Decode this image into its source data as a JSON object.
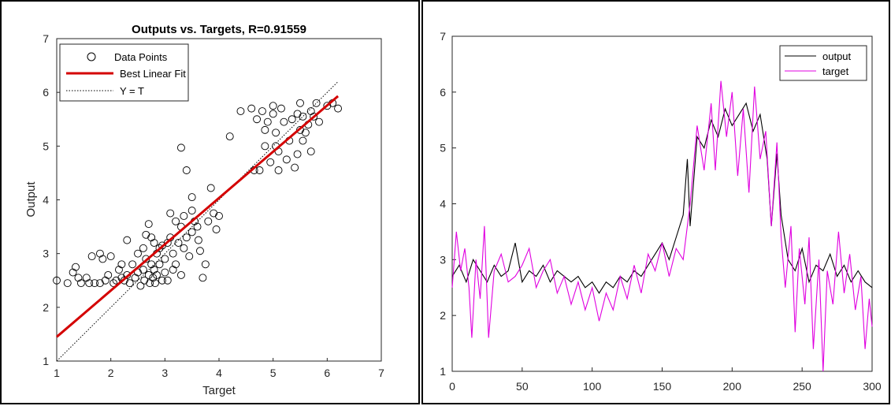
{
  "colors": {
    "scatter_marker": "#000000",
    "fit_line": "#d40000",
    "identity_line": "#000000",
    "output_line": "#000000",
    "target_line": "#e000e0",
    "frame": "#000000"
  },
  "chart_data": [
    {
      "type": "scatter",
      "title": "Outputs vs. Targets, R=0.91559",
      "xlabel": "Target",
      "ylabel": "Output",
      "xlim": [
        1,
        7
      ],
      "ylim": [
        1,
        7
      ],
      "xticks": [
        "1",
        "2",
        "3",
        "4",
        "5",
        "6",
        "7"
      ],
      "yticks": [
        "1",
        "2",
        "3",
        "4",
        "5",
        "6",
        "7"
      ],
      "grid": false,
      "legend_position": "top-left",
      "legend": [
        "Data Points",
        "Best Linear Fit",
        "Y = T"
      ],
      "series": [
        {
          "name": "Data Points",
          "marker": "circle",
          "points": [
            [
              1.0,
              2.5
            ],
            [
              1.2,
              2.45
            ],
            [
              1.3,
              2.65
            ],
            [
              1.35,
              2.75
            ],
            [
              1.4,
              2.55
            ],
            [
              1.45,
              2.45
            ],
            [
              1.55,
              2.55
            ],
            [
              1.6,
              2.45
            ],
            [
              1.65,
              2.95
            ],
            [
              1.7,
              2.45
            ],
            [
              1.8,
              3.0
            ],
            [
              1.8,
              2.45
            ],
            [
              1.85,
              2.9
            ],
            [
              1.9,
              2.5
            ],
            [
              1.95,
              2.6
            ],
            [
              2.0,
              2.95
            ],
            [
              2.05,
              2.45
            ],
            [
              2.1,
              2.5
            ],
            [
              2.15,
              2.7
            ],
            [
              2.2,
              2.8
            ],
            [
              2.2,
              2.55
            ],
            [
              2.25,
              2.5
            ],
            [
              2.3,
              3.25
            ],
            [
              2.3,
              2.6
            ],
            [
              2.35,
              2.45
            ],
            [
              2.4,
              2.8
            ],
            [
              2.45,
              2.55
            ],
            [
              2.5,
              3.0
            ],
            [
              2.5,
              2.65
            ],
            [
              2.55,
              2.4
            ],
            [
              2.6,
              3.1
            ],
            [
              2.6,
              2.7
            ],
            [
              2.62,
              2.5
            ],
            [
              2.65,
              3.35
            ],
            [
              2.65,
              2.9
            ],
            [
              2.7,
              3.55
            ],
            [
              2.7,
              2.6
            ],
            [
              2.72,
              2.45
            ],
            [
              2.75,
              3.3
            ],
            [
              2.75,
              2.8
            ],
            [
              2.78,
              2.55
            ],
            [
              2.8,
              3.2
            ],
            [
              2.8,
              2.7
            ],
            [
              2.82,
              2.45
            ],
            [
              2.85,
              3.0
            ],
            [
              2.85,
              2.6
            ],
            [
              2.9,
              3.1
            ],
            [
              2.9,
              2.8
            ],
            [
              2.95,
              2.5
            ],
            [
              2.95,
              3.15
            ],
            [
              3.0,
              2.9
            ],
            [
              3.0,
              2.65
            ],
            [
              3.05,
              3.2
            ],
            [
              3.05,
              2.5
            ],
            [
              3.1,
              3.75
            ],
            [
              3.1,
              3.3
            ],
            [
              3.15,
              3.0
            ],
            [
              3.15,
              2.7
            ],
            [
              3.2,
              3.6
            ],
            [
              3.2,
              2.8
            ],
            [
              3.25,
              3.2
            ],
            [
              3.3,
              4.97
            ],
            [
              3.3,
              3.5
            ],
            [
              3.3,
              2.6
            ],
            [
              3.35,
              3.1
            ],
            [
              3.35,
              3.7
            ],
            [
              3.4,
              4.55
            ],
            [
              3.4,
              3.3
            ],
            [
              3.45,
              2.95
            ],
            [
              3.5,
              4.05
            ],
            [
              3.5,
              3.8
            ],
            [
              3.5,
              3.4
            ],
            [
              3.55,
              3.6
            ],
            [
              3.6,
              3.5
            ],
            [
              3.62,
              3.25
            ],
            [
              3.65,
              3.05
            ],
            [
              3.7,
              2.55
            ],
            [
              3.75,
              2.8
            ],
            [
              3.8,
              3.6
            ],
            [
              3.85,
              4.22
            ],
            [
              3.9,
              3.75
            ],
            [
              3.95,
              3.45
            ],
            [
              4.0,
              3.7
            ],
            [
              4.2,
              5.18
            ],
            [
              4.4,
              5.65
            ],
            [
              4.6,
              5.7
            ],
            [
              4.65,
              4.55
            ],
            [
              4.7,
              5.5
            ],
            [
              4.75,
              4.55
            ],
            [
              4.8,
              5.65
            ],
            [
              4.85,
              5.3
            ],
            [
              4.85,
              5.0
            ],
            [
              4.9,
              5.45
            ],
            [
              4.95,
              4.7
            ],
            [
              5.0,
              5.6
            ],
            [
              5.0,
              5.75
            ],
            [
              5.05,
              5.25
            ],
            [
              5.05,
              5.0
            ],
            [
              5.1,
              4.9
            ],
            [
              5.1,
              4.55
            ],
            [
              5.15,
              5.7
            ],
            [
              5.2,
              5.45
            ],
            [
              5.25,
              4.75
            ],
            [
              5.3,
              5.1
            ],
            [
              5.35,
              5.5
            ],
            [
              5.4,
              4.6
            ],
            [
              5.45,
              5.6
            ],
            [
              5.45,
              4.85
            ],
            [
              5.5,
              5.8
            ],
            [
              5.5,
              5.3
            ],
            [
              5.55,
              5.55
            ],
            [
              5.55,
              5.1
            ],
            [
              5.6,
              5.25
            ],
            [
              5.65,
              5.4
            ],
            [
              5.7,
              4.9
            ],
            [
              5.7,
              5.65
            ],
            [
              5.75,
              5.55
            ],
            [
              5.8,
              5.8
            ],
            [
              5.85,
              5.45
            ],
            [
              6.0,
              5.75
            ],
            [
              6.1,
              5.8
            ],
            [
              6.2,
              5.7
            ]
          ]
        },
        {
          "name": "Best Linear Fit",
          "line": [
            [
              1,
              1.45
            ],
            [
              6.2,
              5.93
            ]
          ]
        },
        {
          "name": "Y = T",
          "line": [
            [
              1,
              1
            ],
            [
              6.2,
              6.2
            ]
          ]
        }
      ]
    },
    {
      "type": "line",
      "title": "",
      "xlabel": "",
      "ylabel": "",
      "xlim": [
        0,
        300
      ],
      "ylim": [
        1,
        7
      ],
      "xticks": [
        "0",
        "50",
        "100",
        "150",
        "200",
        "250",
        "300"
      ],
      "yticks": [
        "1",
        "2",
        "3",
        "4",
        "5",
        "6",
        "7"
      ],
      "grid": false,
      "legend_position": "top-right",
      "legend": [
        "output",
        "target"
      ],
      "series": [
        {
          "name": "output",
          "points": [
            [
              0,
              2.7
            ],
            [
              5,
              2.9
            ],
            [
              10,
              2.6
            ],
            [
              15,
              3.0
            ],
            [
              20,
              2.8
            ],
            [
              25,
              2.6
            ],
            [
              30,
              2.9
            ],
            [
              35,
              2.7
            ],
            [
              40,
              2.8
            ],
            [
              45,
              3.3
            ],
            [
              50,
              2.6
            ],
            [
              55,
              2.8
            ],
            [
              60,
              2.7
            ],
            [
              65,
              2.9
            ],
            [
              70,
              2.6
            ],
            [
              75,
              2.8
            ],
            [
              80,
              2.7
            ],
            [
              85,
              2.6
            ],
            [
              90,
              2.7
            ],
            [
              95,
              2.5
            ],
            [
              100,
              2.6
            ],
            [
              105,
              2.4
            ],
            [
              110,
              2.6
            ],
            [
              115,
              2.5
            ],
            [
              120,
              2.7
            ],
            [
              125,
              2.6
            ],
            [
              130,
              2.8
            ],
            [
              135,
              2.7
            ],
            [
              140,
              2.9
            ],
            [
              145,
              3.1
            ],
            [
              150,
              3.3
            ],
            [
              155,
              3.0
            ],
            [
              160,
              3.4
            ],
            [
              165,
              3.8
            ],
            [
              168,
              4.8
            ],
            [
              170,
              3.6
            ],
            [
              175,
              5.2
            ],
            [
              180,
              5.0
            ],
            [
              185,
              5.5
            ],
            [
              190,
              5.2
            ],
            [
              195,
              5.7
            ],
            [
              200,
              5.4
            ],
            [
              205,
              5.6
            ],
            [
              210,
              5.8
            ],
            [
              215,
              5.3
            ],
            [
              220,
              5.6
            ],
            [
              225,
              4.8
            ],
            [
              228,
              3.6
            ],
            [
              232,
              4.9
            ],
            [
              235,
              3.8
            ],
            [
              240,
              3.0
            ],
            [
              245,
              2.8
            ],
            [
              250,
              3.2
            ],
            [
              255,
              2.6
            ],
            [
              260,
              2.9
            ],
            [
              265,
              2.8
            ],
            [
              270,
              3.1
            ],
            [
              275,
              2.7
            ],
            [
              280,
              2.9
            ],
            [
              285,
              2.6
            ],
            [
              290,
              2.8
            ],
            [
              295,
              2.6
            ],
            [
              300,
              2.5
            ]
          ]
        },
        {
          "name": "target",
          "points": [
            [
              0,
              2.5
            ],
            [
              3,
              3.5
            ],
            [
              6,
              2.8
            ],
            [
              9,
              3.2
            ],
            [
              12,
              2.5
            ],
            [
              14,
              1.6
            ],
            [
              17,
              3.0
            ],
            [
              20,
              2.3
            ],
            [
              23,
              3.6
            ],
            [
              26,
              1.6
            ],
            [
              30,
              2.8
            ],
            [
              35,
              3.1
            ],
            [
              40,
              2.6
            ],
            [
              45,
              2.7
            ],
            [
              50,
              2.9
            ],
            [
              55,
              3.2
            ],
            [
              60,
              2.5
            ],
            [
              65,
              2.8
            ],
            [
              70,
              3.0
            ],
            [
              75,
              2.4
            ],
            [
              80,
              2.7
            ],
            [
              85,
              2.2
            ],
            [
              90,
              2.6
            ],
            [
              95,
              2.1
            ],
            [
              100,
              2.5
            ],
            [
              105,
              1.9
            ],
            [
              110,
              2.4
            ],
            [
              115,
              2.1
            ],
            [
              120,
              2.7
            ],
            [
              125,
              2.3
            ],
            [
              130,
              2.9
            ],
            [
              135,
              2.4
            ],
            [
              140,
              3.1
            ],
            [
              145,
              2.8
            ],
            [
              150,
              3.3
            ],
            [
              155,
              2.7
            ],
            [
              160,
              3.2
            ],
            [
              165,
              3.0
            ],
            [
              170,
              4.0
            ],
            [
              175,
              5.4
            ],
            [
              180,
              4.6
            ],
            [
              185,
              5.8
            ],
            [
              188,
              4.6
            ],
            [
              192,
              6.2
            ],
            [
              196,
              5.2
            ],
            [
              200,
              6.0
            ],
            [
              204,
              4.5
            ],
            [
              208,
              5.7
            ],
            [
              212,
              4.2
            ],
            [
              216,
              6.1
            ],
            [
              220,
              4.8
            ],
            [
              224,
              5.3
            ],
            [
              228,
              3.6
            ],
            [
              232,
              5.1
            ],
            [
              235,
              3.4
            ],
            [
              238,
              2.5
            ],
            [
              242,
              3.6
            ],
            [
              245,
              1.7
            ],
            [
              248,
              3.2
            ],
            [
              252,
              2.2
            ],
            [
              255,
              3.4
            ],
            [
              258,
              1.4
            ],
            [
              262,
              3.0
            ],
            [
              265,
              1.0
            ],
            [
              268,
              2.8
            ],
            [
              272,
              2.2
            ],
            [
              276,
              3.5
            ],
            [
              280,
              2.4
            ],
            [
              284,
              3.1
            ],
            [
              288,
              2.1
            ],
            [
              292,
              2.7
            ],
            [
              295,
              1.4
            ],
            [
              298,
              2.3
            ],
            [
              300,
              1.8
            ]
          ]
        }
      ]
    }
  ]
}
